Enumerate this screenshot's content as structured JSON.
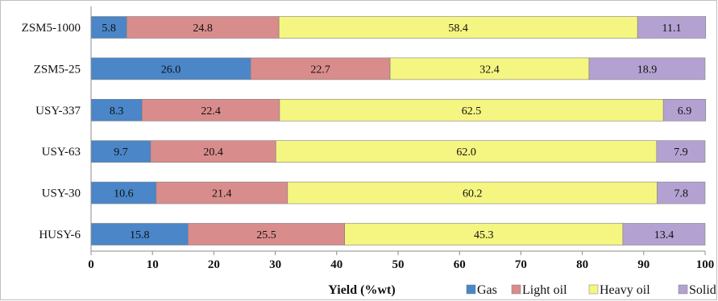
{
  "chart_data": {
    "type": "bar",
    "orientation": "horizontal",
    "stacked": true,
    "categories": [
      "ZSM5-1000",
      "ZSM5-25",
      "USY-337",
      "USY-63",
      "USY-30",
      "HUSY-6"
    ],
    "series": [
      {
        "name": "Gas",
        "color": "#4a86c8",
        "values": [
          5.8,
          26.0,
          8.3,
          9.7,
          10.6,
          15.8
        ],
        "labels": [
          "5.8",
          "26.0",
          "8.3",
          "9.7",
          "10.6",
          "15.8"
        ]
      },
      {
        "name": "Light oil",
        "color": "#d98c8c",
        "values": [
          24.8,
          22.7,
          22.4,
          20.4,
          21.4,
          25.5
        ],
        "labels": [
          "24.8",
          "22.7",
          "22.4",
          "20.4",
          "21.4",
          "25.5"
        ]
      },
      {
        "name": "Heavy oil",
        "color": "#f5f582",
        "values": [
          58.4,
          32.4,
          62.5,
          62.0,
          60.2,
          45.3
        ],
        "labels": [
          "58.4",
          "32.4",
          "62.5",
          "62.0",
          "60.2",
          "45.3"
        ]
      },
      {
        "name": "Solid",
        "color": "#b3a2d1",
        "values": [
          11.1,
          18.9,
          6.9,
          7.9,
          7.8,
          13.4
        ],
        "labels": [
          "11.1",
          "18.9",
          "6.9",
          "7.9",
          "7.8",
          "13.4"
        ]
      }
    ],
    "xlabel": "Yield (%wt)",
    "xlim": [
      0,
      100
    ],
    "xticks": [
      0,
      10,
      20,
      30,
      40,
      50,
      60,
      70,
      80,
      90,
      100
    ],
    "grid": false,
    "legend_position": "bottom-right"
  }
}
